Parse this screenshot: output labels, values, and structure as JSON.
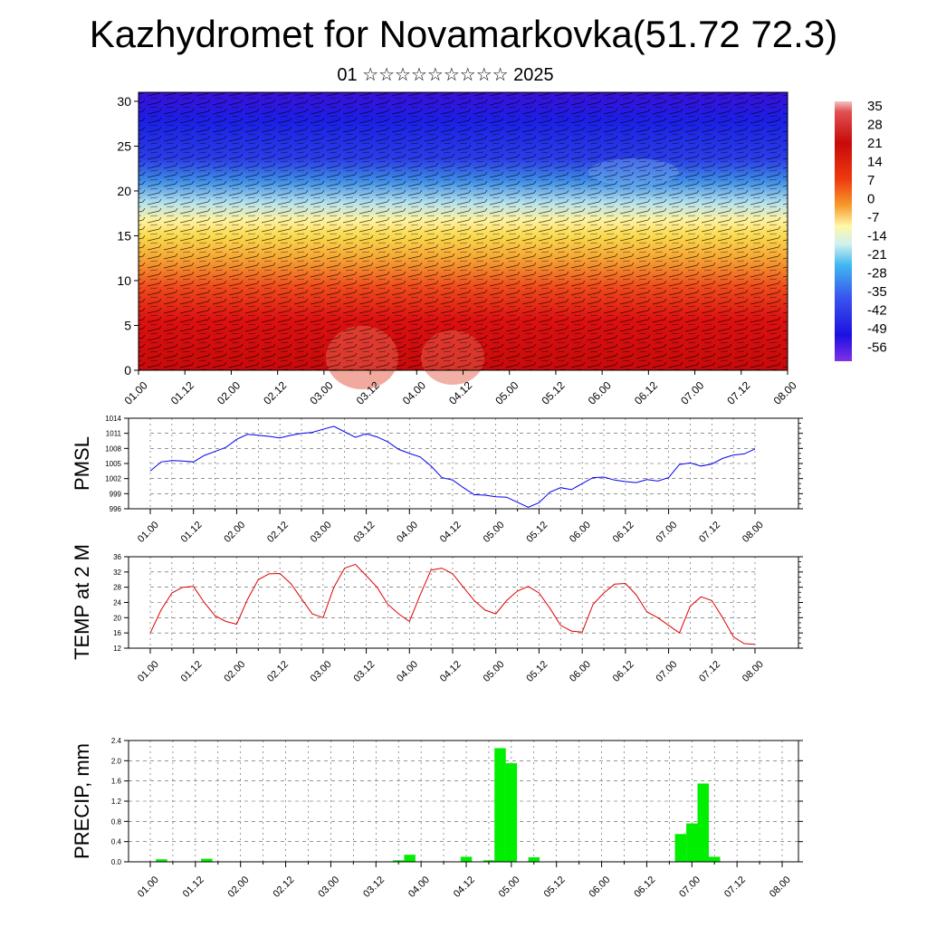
{
  "title": "Kazhydromet for Novamarkovka(51.72 72.3)",
  "subtitle": "01 ☆☆☆☆☆☆☆☆☆ 2025",
  "time_labels": [
    "01.00",
    "01.12",
    "02.00",
    "02.12",
    "03.00",
    "03.12",
    "04.00",
    "04.12",
    "05.00",
    "05.12",
    "06.00",
    "06.12",
    "07.00",
    "07.12",
    "08.00"
  ],
  "colors": {
    "pmsl_line": "#0000ee",
    "temp_line": "#e00000",
    "precip_bar": "#00ee00"
  },
  "chart_data": [
    {
      "type": "heatmap",
      "name": "vertical temperature/wind cross-section",
      "x_ticks": [
        "01.00",
        "01.12",
        "02.00",
        "02.12",
        "03.00",
        "03.12",
        "04.00",
        "04.12",
        "05.00",
        "05.12",
        "06.00",
        "06.12",
        "07.00",
        "07.12",
        "08.00"
      ],
      "y_ticks": [
        0,
        5,
        10,
        15,
        20,
        25,
        30
      ],
      "ylim": [
        0,
        31
      ],
      "colorbar": {
        "labels": [
          "35",
          "28",
          "21",
          "14",
          "7",
          "0",
          "-7",
          "-14",
          "-21",
          "-28",
          "-35",
          "-42",
          "-49",
          "-56"
        ],
        "range": [
          35,
          -56
        ]
      },
      "wind_barbs": true
    },
    {
      "type": "line",
      "ylabel": "PMSL",
      "y_ticks": [
        996,
        999,
        1002,
        1005,
        1008,
        1011,
        1014
      ],
      "ylim": [
        996,
        1014
      ],
      "x_ticks": [
        "01.00",
        "01.12",
        "02.00",
        "02.12",
        "03.00",
        "03.12",
        "04.00",
        "04.12",
        "05.00",
        "05.12",
        "06.00",
        "06.12",
        "07.00",
        "07.12",
        "08.00"
      ],
      "x_hours": [
        0,
        3,
        6,
        9,
        12,
        15,
        18,
        21,
        24,
        27,
        30,
        33,
        36,
        39,
        42,
        45,
        48,
        51,
        54,
        57,
        60,
        63,
        66,
        69,
        72,
        75,
        78,
        81,
        84,
        87,
        90,
        93,
        96,
        99,
        102,
        105,
        108,
        111,
        114,
        117,
        120,
        123,
        126,
        129,
        132,
        135,
        138,
        141,
        144,
        147,
        150,
        153,
        156,
        159,
        162,
        165,
        168
      ],
      "values": [
        1003.5,
        1005.3,
        1005.6,
        1005.5,
        1005.3,
        1006.6,
        1007.4,
        1008.2,
        1009.8,
        1010.8,
        1010.6,
        1010.4,
        1010.1,
        1010.6,
        1011.0,
        1011.2,
        1011.8,
        1012.4,
        1011.3,
        1010.2,
        1010.9,
        1010.3,
        1009.3,
        1007.8,
        1007.0,
        1006.3,
        1004.5,
        1002.2,
        1001.7,
        1000.2,
        998.8,
        998.7,
        998.4,
        998.3,
        997.3,
        996.3,
        997.2,
        999.3,
        1000.2,
        999.8,
        1001.0,
        1002.2,
        1002.3,
        1001.7,
        1001.4,
        1001.2,
        1001.8,
        1001.5,
        1002.2,
        1004.8,
        1005.1,
        1004.5,
        1004.9,
        1006.0,
        1006.7,
        1006.9,
        1007.9
      ]
    },
    {
      "type": "line",
      "ylabel": "TEMP at 2 M",
      "y_ticks": [
        12,
        16,
        20,
        24,
        28,
        32,
        36
      ],
      "ylim": [
        12,
        36
      ],
      "x_ticks": [
        "01.00",
        "01.12",
        "02.00",
        "02.12",
        "03.00",
        "03.12",
        "04.00",
        "04.12",
        "05.00",
        "05.12",
        "06.00",
        "06.12",
        "07.00",
        "07.12",
        "08.00"
      ],
      "x_hours": [
        0,
        3,
        6,
        9,
        12,
        15,
        18,
        21,
        24,
        27,
        30,
        33,
        36,
        39,
        42,
        45,
        48,
        51,
        54,
        57,
        60,
        63,
        66,
        69,
        72,
        75,
        78,
        81,
        84,
        87,
        90,
        93,
        96,
        99,
        102,
        105,
        108,
        111,
        114,
        117,
        120,
        123,
        126,
        129,
        132,
        135,
        138,
        141,
        144,
        147,
        150,
        153,
        156,
        159,
        162,
        165,
        168
      ],
      "values": [
        16.0,
        22.0,
        26.5,
        28.0,
        28.2,
        24.0,
        20.5,
        19.0,
        18.3,
        24.8,
        30.0,
        31.5,
        31.6,
        29.0,
        25.0,
        21.0,
        20.0,
        28.0,
        33.0,
        34.0,
        31.0,
        28.0,
        23.5,
        21.0,
        19.0,
        26.0,
        32.5,
        33.0,
        31.5,
        28.0,
        24.5,
        22.0,
        21.0,
        24.5,
        27.0,
        28.2,
        26.5,
        22.5,
        18.0,
        16.5,
        16.2,
        23.5,
        26.5,
        28.8,
        29.0,
        26.0,
        21.5,
        20.0,
        18.0,
        16.0,
        23.0,
        25.5,
        24.5,
        20.0,
        15.0,
        13.2,
        13.0
      ]
    },
    {
      "type": "bar",
      "ylabel": "PRECIP, mm",
      "y_ticks": [
        "0.0",
        "0.4",
        "0.8",
        "1.2",
        "1.6",
        "2.0",
        "2.4"
      ],
      "ylim": [
        0,
        2.4
      ],
      "x_ticks": [
        "01.00",
        "01.12",
        "02.00",
        "02.12",
        "03.00",
        "03.12",
        "04.00",
        "04.12",
        "05.00",
        "05.12",
        "06.00",
        "06.12",
        "07.00",
        "07.12",
        "08.00"
      ],
      "bar_hours": [
        3,
        15,
        24,
        27,
        48,
        51,
        60,
        63,
        66,
        69,
        72,
        75,
        78,
        81,
        84,
        87,
        90,
        93,
        96,
        99,
        102,
        105,
        108,
        111,
        114,
        117,
        120,
        123,
        126,
        129,
        132,
        135,
        138,
        141,
        144,
        147,
        150,
        153,
        156,
        159,
        162,
        165,
        168
      ],
      "values": [
        0.05,
        0.06,
        0,
        0,
        0,
        0,
        0,
        0,
        0.03,
        0.14,
        0,
        0,
        0,
        0,
        0.1,
        0,
        0.03,
        2.25,
        1.95,
        0,
        0.09,
        0,
        0,
        0,
        0,
        0,
        0,
        0,
        0,
        0,
        0,
        0,
        0,
        0.55,
        0.76,
        1.55,
        0.1,
        0,
        0,
        0,
        0,
        0,
        0
      ],
      "bar_width_hours": 3
    }
  ]
}
